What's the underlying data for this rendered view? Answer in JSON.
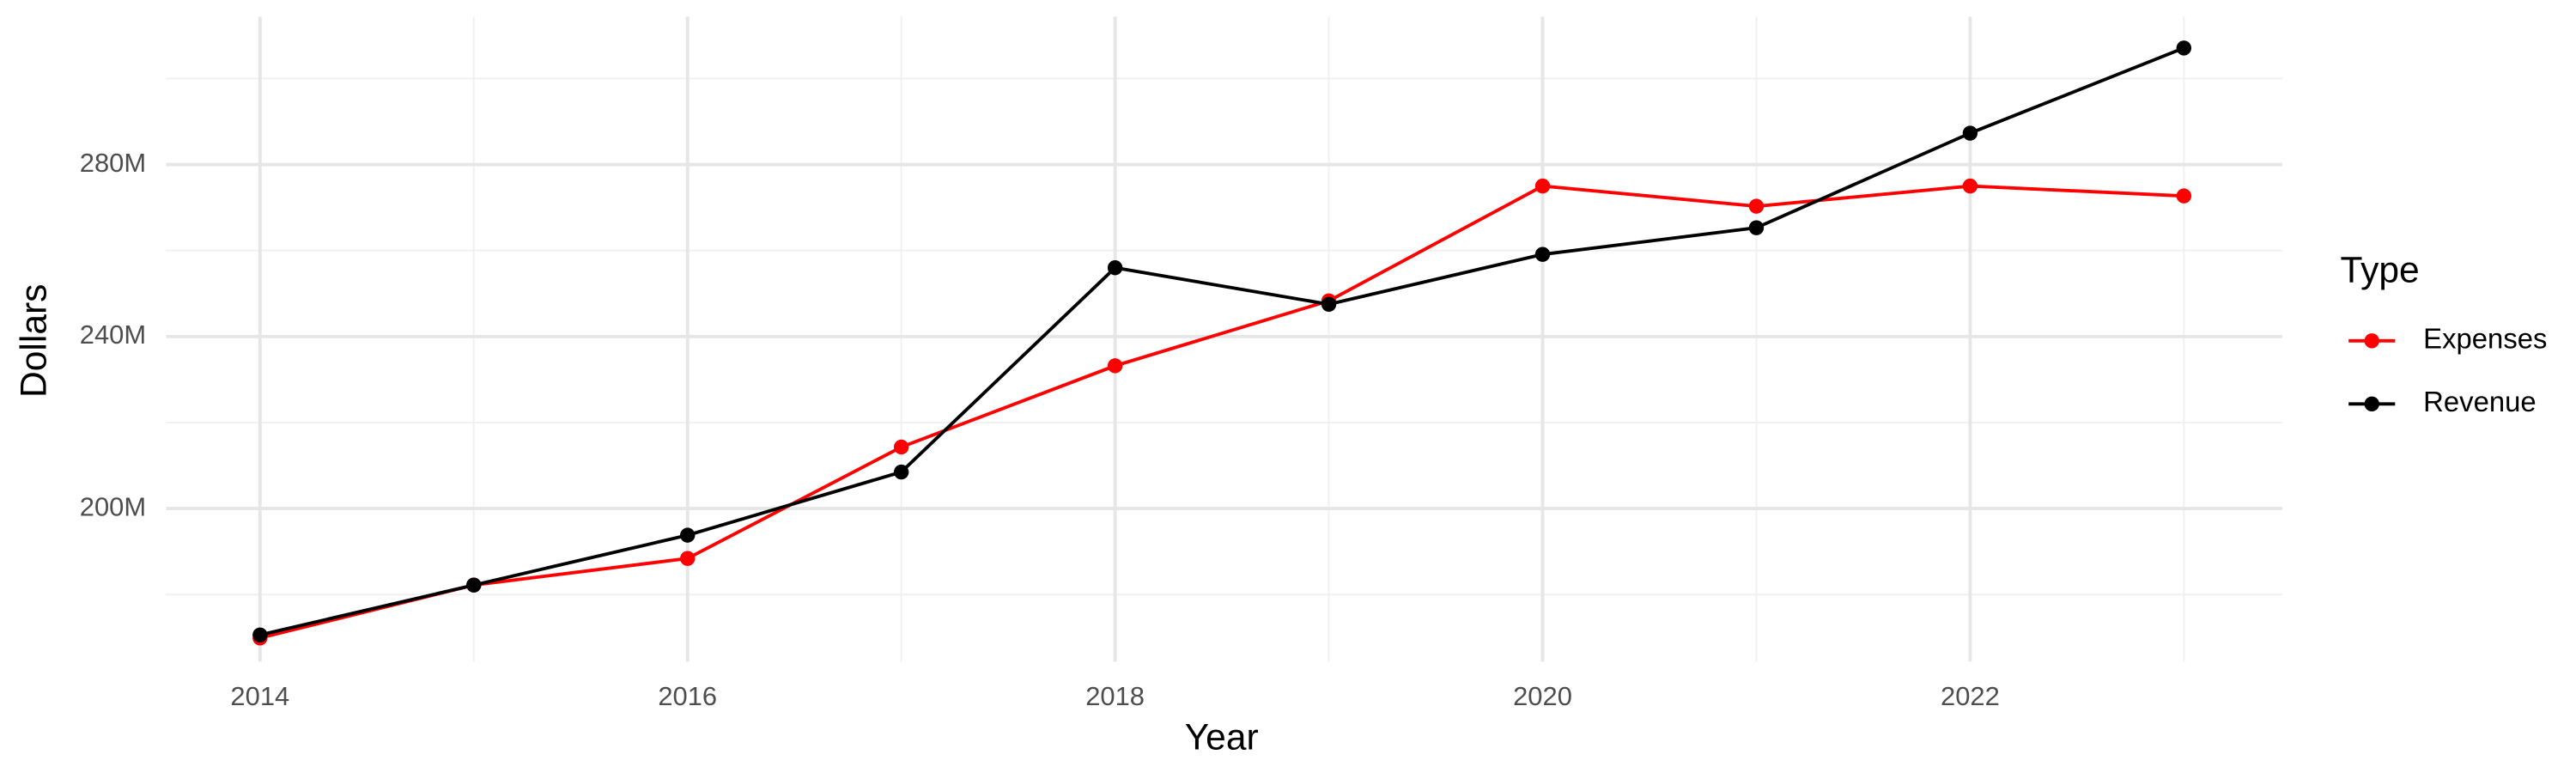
{
  "chart_data": {
    "type": "line",
    "x_label": "Year",
    "y_label": "Dollars",
    "x": [
      2014,
      2015,
      2016,
      2017,
      2018,
      2019,
      2020,
      2021,
      2022,
      2023
    ],
    "series": [
      {
        "name": "Expenses",
        "color": "#ff0000",
        "values": [
          169900000,
          182200000,
          188400000,
          214300000,
          233200000,
          248300000,
          275000000,
          270300000,
          275000000,
          272700000
        ]
      },
      {
        "name": "Revenue",
        "color": "#000000",
        "values": [
          170600000,
          182200000,
          193800000,
          208500000,
          256000000,
          247500000,
          259100000,
          265300000,
          287300000,
          307100000
        ]
      }
    ],
    "xlim": [
      2013.56,
      2023.46
    ],
    "xticks": [
      2014,
      2016,
      2018,
      2020,
      2022
    ],
    "minor_xticks": [
      2015,
      2017,
      2019,
      2021,
      2023
    ],
    "ylim": [
      164400000,
      314400000
    ],
    "yticks": [
      {
        "value": 200000000,
        "label": "200M"
      },
      {
        "value": 240000000,
        "label": "240M"
      },
      {
        "value": 280000000,
        "label": "280M"
      }
    ],
    "minor_yticks": [
      180000000,
      220000000,
      260000000,
      300000000
    ],
    "grid": true,
    "legend_title": "Type",
    "legend_position": "right"
  }
}
